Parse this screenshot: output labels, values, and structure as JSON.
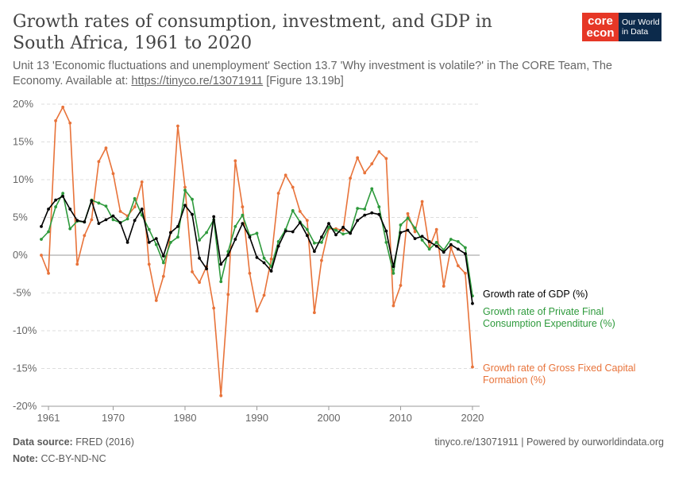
{
  "title": "Growth rates of consumption, investment, and GDP in South Africa, 1961 to 2020",
  "subtitle": {
    "text": "Unit 13 'Economic fluctuations and unemployment' Section 13.7 'Why investment is volatile?' in The CORE Team, The Economy. Available at: ",
    "link": "https://tinyco.re/13071911",
    "suffix": " [Figure 13.19b]"
  },
  "logo": {
    "core_top": "core",
    "core_bottom": "econ",
    "owid_lines": [
      "Our World",
      "in Data"
    ]
  },
  "footer": {
    "source_label": "Data source:",
    "source_value": "FRED (2016)",
    "note_label": "Note:",
    "note_value": "CC-BY-ND-NC",
    "right": "tinyco.re/13071911 | Powered by ourworldindata.org"
  },
  "colors": {
    "gdp": "#000000",
    "consumption": "#2e9a3c",
    "investment": "#e8733a",
    "grid": "#dddddd",
    "axis_text": "#666666"
  },
  "chart_data": {
    "type": "line",
    "x_ticks": [
      1961,
      1970,
      1980,
      1990,
      2000,
      2010,
      2020
    ],
    "y_ticks": [
      -20,
      -15,
      -10,
      -5,
      0,
      5,
      10,
      15,
      20
    ],
    "y_tick_labels": [
      "-20%",
      "-15%",
      "-10%",
      "-5%",
      "0%",
      "5%",
      "10%",
      "15%",
      "20%"
    ],
    "xlim": [
      1960,
      2021
    ],
    "ylim": [
      -20,
      20
    ],
    "x": [
      1960,
      1961,
      1962,
      1963,
      1964,
      1965,
      1966,
      1967,
      1968,
      1969,
      1970,
      1971,
      1972,
      1973,
      1974,
      1975,
      1976,
      1977,
      1978,
      1979,
      1980,
      1981,
      1982,
      1983,
      1984,
      1985,
      1986,
      1987,
      1988,
      1989,
      1990,
      1991,
      1992,
      1993,
      1994,
      1995,
      1996,
      1997,
      1998,
      1999,
      2000,
      2001,
      2002,
      2003,
      2004,
      2005,
      2006,
      2007,
      2008,
      2009,
      2010,
      2011,
      2012,
      2013,
      2014,
      2015,
      2016,
      2017,
      2018,
      2019,
      2020
    ],
    "series": [
      {
        "name": "Growth rate of GDP (%)",
        "label_lines": [
          "Growth rate of GDP (%)"
        ],
        "values": [
          3.8,
          6.1,
          7.3,
          7.8,
          6.1,
          4.6,
          4.4,
          7.2,
          4.2,
          4.7,
          5.2,
          4.3,
          1.7,
          4.6,
          6.1,
          1.7,
          2.2,
          -0.1,
          3.0,
          3.8,
          6.6,
          5.4,
          -0.4,
          -1.8,
          5.1,
          -1.2,
          0.0,
          2.1,
          4.2,
          2.4,
          -0.3,
          -1.0,
          -2.1,
          1.2,
          3.2,
          3.1,
          4.3,
          2.6,
          0.5,
          2.4,
          4.2,
          2.7,
          3.7,
          2.9,
          4.6,
          5.3,
          5.6,
          5.4,
          3.2,
          -1.5,
          3.0,
          3.3,
          2.2,
          2.5,
          1.8,
          1.2,
          0.4,
          1.4,
          0.8,
          0.2,
          -6.4
        ]
      },
      {
        "name": "Growth rate of Private Final Consumption Expenditure (%)",
        "label_lines": [
          "Growth rate of Private Final",
          "Consumption Expenditure (%)"
        ],
        "values": [
          2.1,
          3.1,
          6.4,
          8.2,
          3.5,
          4.5,
          4.4,
          7.3,
          6.9,
          6.5,
          4.7,
          4.3,
          4.8,
          7.5,
          5.3,
          3.4,
          1.4,
          -1.0,
          1.7,
          2.4,
          8.6,
          7.4,
          2.0,
          3.0,
          4.7,
          -3.5,
          0.5,
          3.8,
          5.3,
          2.6,
          2.9,
          -0.4,
          -1.5,
          1.8,
          3.4,
          5.9,
          4.4,
          3.4,
          1.6,
          1.7,
          3.7,
          3.3,
          2.8,
          3.0,
          6.2,
          6.1,
          8.8,
          6.4,
          1.7,
          -2.4,
          4.0,
          4.9,
          3.6,
          2.0,
          0.8,
          1.7,
          0.7,
          2.1,
          1.8,
          1.0,
          -5.4
        ]
      },
      {
        "name": "Growth rate of Gross Fixed Capital Formation (%)",
        "label_lines": [
          "Growth rate of Gross Fixed Capital",
          "Formation (%)"
        ],
        "values": [
          0.0,
          -2.4,
          17.8,
          19.6,
          17.5,
          -1.2,
          2.6,
          4.7,
          12.4,
          14.2,
          10.8,
          5.8,
          5.2,
          6.4,
          9.7,
          -1.2,
          -6.0,
          -2.8,
          3.0,
          17.1,
          9.0,
          -2.2,
          -3.6,
          -1.5,
          -7.0,
          -18.6,
          -5.2,
          12.5,
          6.4,
          -2.4,
          -7.4,
          -5.3,
          -0.5,
          8.2,
          10.6,
          9.0,
          5.8,
          4.6,
          -7.6,
          -0.7,
          3.5,
          3.5,
          3.3,
          10.2,
          12.9,
          10.9,
          12.1,
          13.7,
          12.8,
          -6.7,
          -4.0,
          5.5,
          3.1,
          7.1,
          1.0,
          3.4,
          -4.1,
          1.0,
          -1.4,
          -2.4,
          -14.8
        ]
      }
    ],
    "title": "Growth rates of consumption, investment, and GDP in South Africa, 1961 to 2020",
    "xlabel": "",
    "ylabel": "",
    "grid": true,
    "legend": "right-end-labels"
  }
}
